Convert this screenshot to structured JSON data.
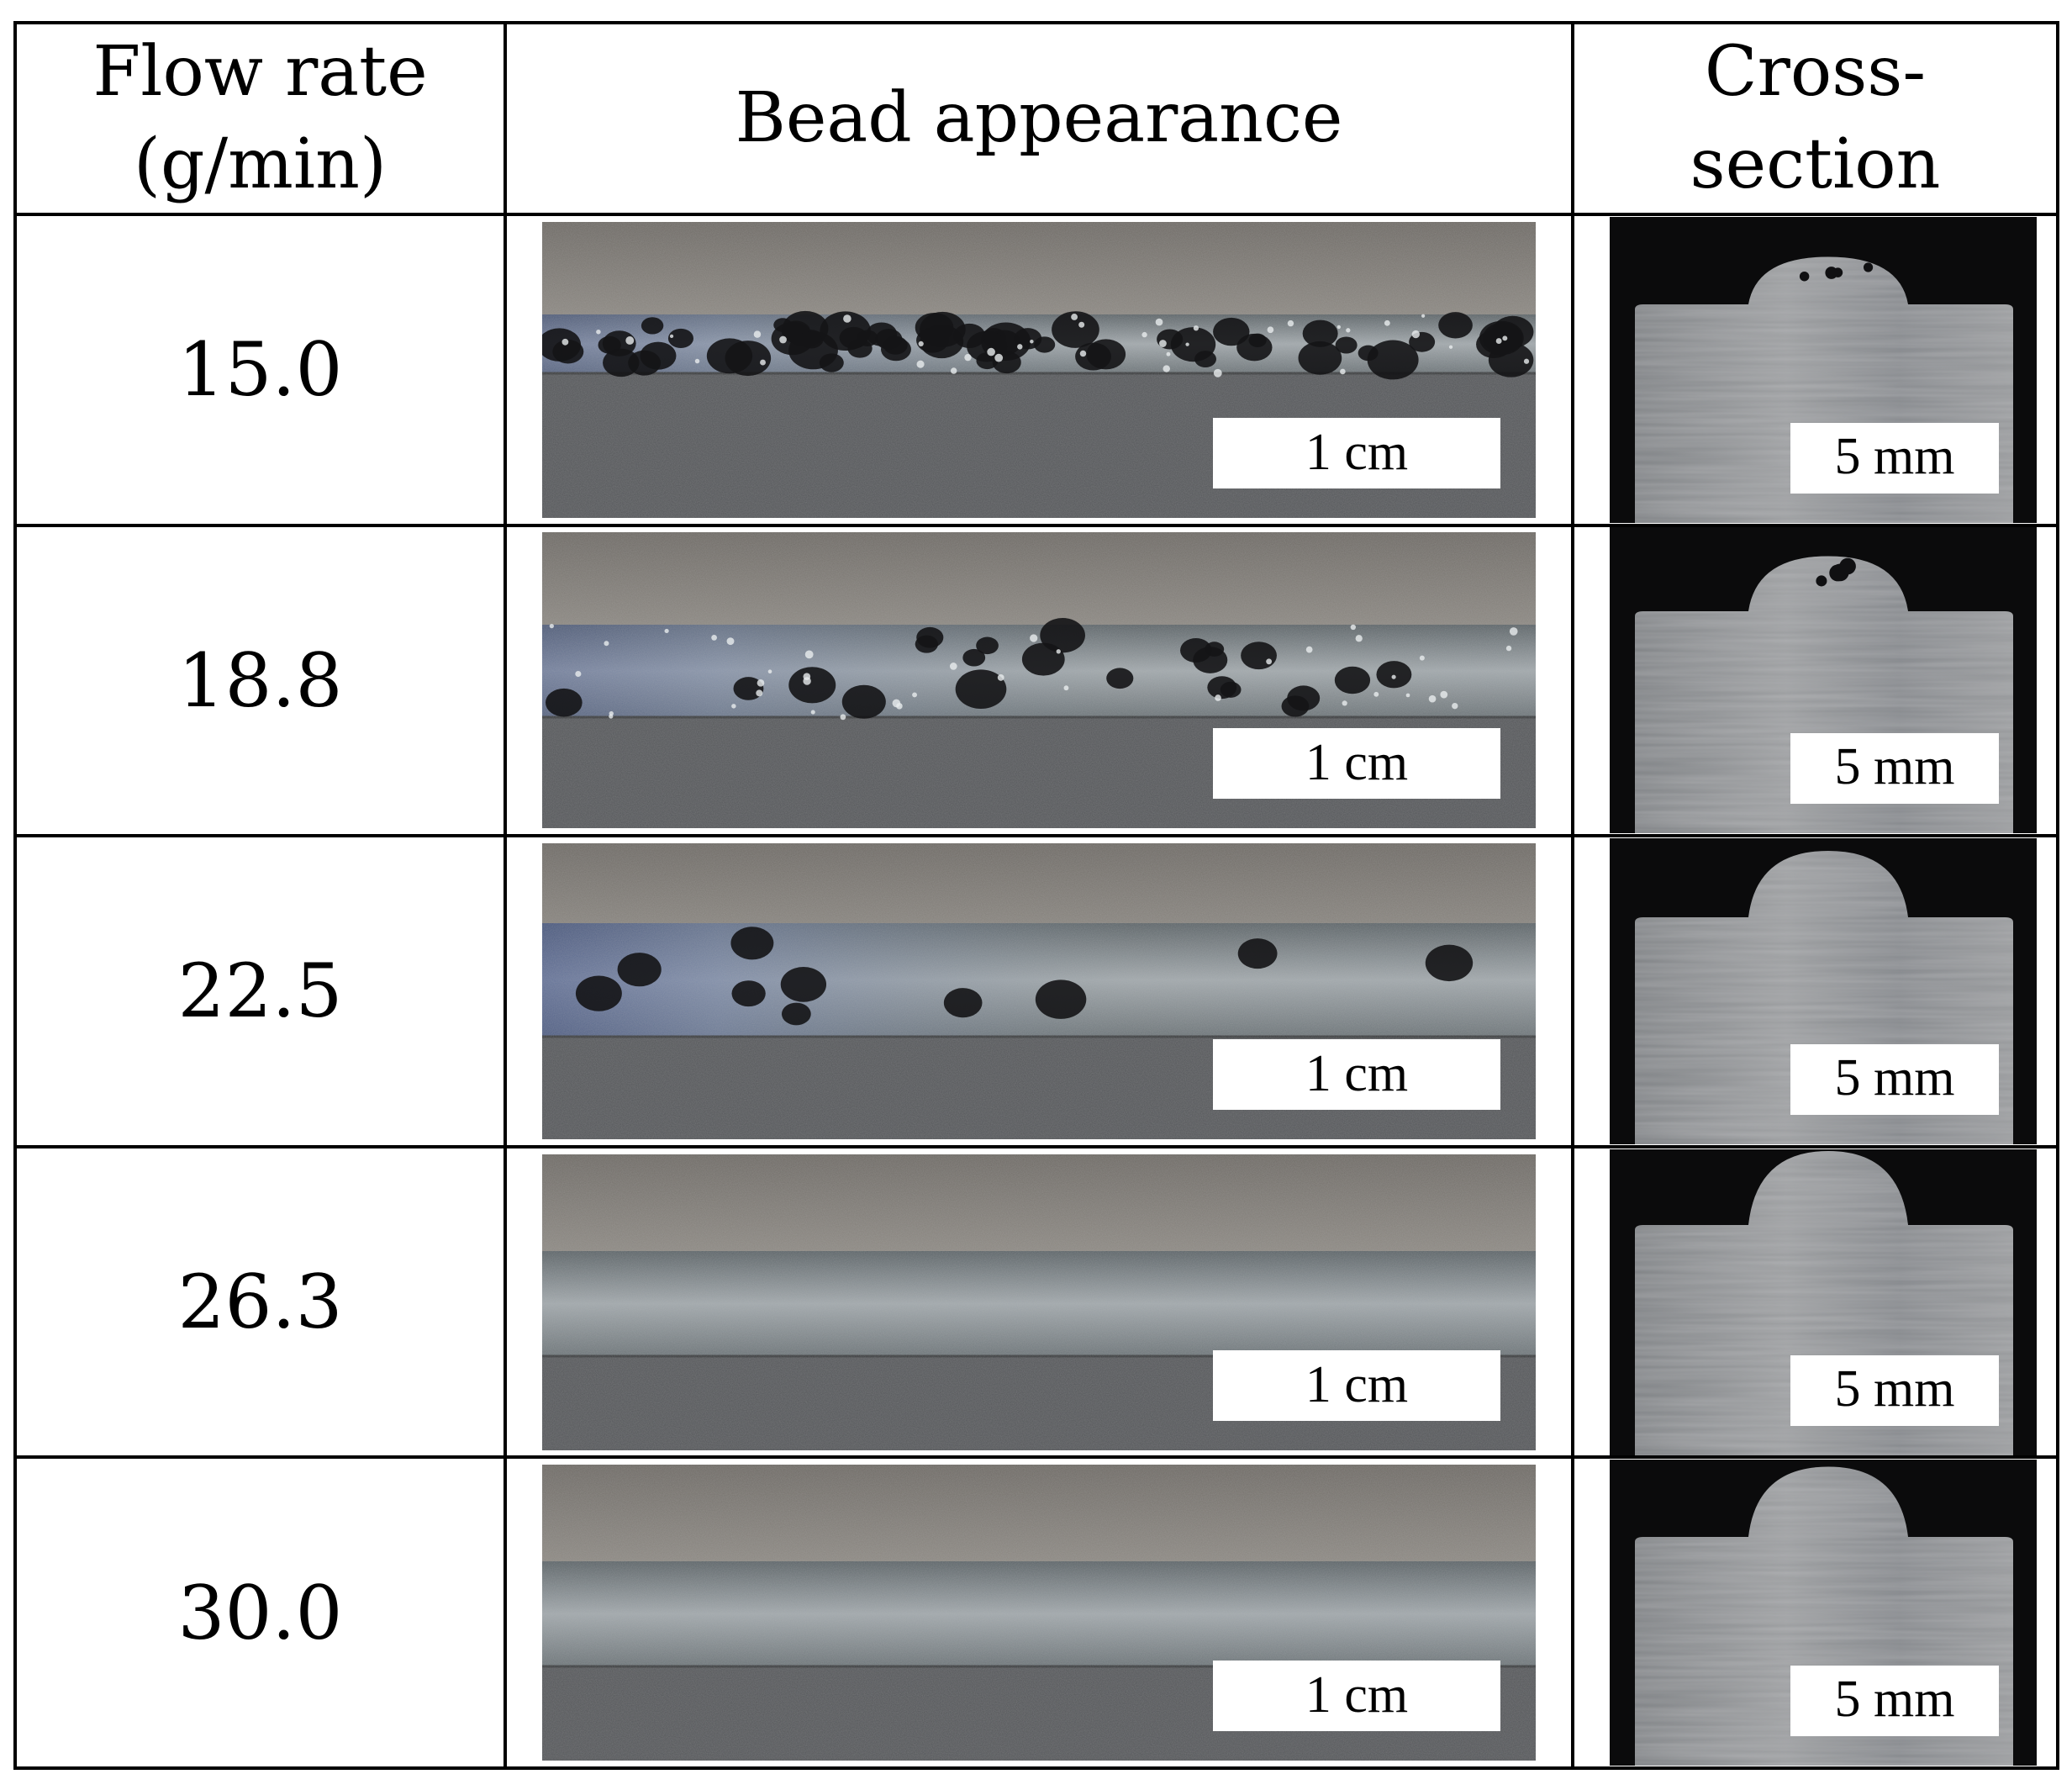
{
  "table": {
    "headers": {
      "flow_rate": "Flow rate (g/min)",
      "bead": "Bead appearance",
      "cross_section": "Cross-section"
    },
    "rows": [
      {
        "flow_rate": "15.0",
        "bead_scale": "1 cm",
        "xsec_scale": "5 mm",
        "bead_porosity": "high",
        "xsec_reinforcement": 0.25
      },
      {
        "flow_rate": "18.8",
        "bead_scale": "1 cm",
        "xsec_scale": "5 mm",
        "bead_porosity": "medium",
        "xsec_reinforcement": 0.35
      },
      {
        "flow_rate": "22.5",
        "bead_scale": "1 cm",
        "xsec_scale": "5 mm",
        "bead_porosity": "low",
        "xsec_reinforcement": 0.5
      },
      {
        "flow_rate": "26.3",
        "bead_scale": "1 cm",
        "xsec_scale": "5 mm",
        "bead_porosity": "none",
        "xsec_reinforcement": 0.6
      },
      {
        "flow_rate": "30.0",
        "bead_scale": "1 cm",
        "xsec_scale": "5 mm",
        "bead_porosity": "none",
        "xsec_reinforcement": 0.55
      }
    ]
  },
  "colors": {
    "plate": "#55575a",
    "plate_upper": "#7b7772",
    "bead_metal": "#8a9296",
    "oxide_blue": "#3c4f8c",
    "pore": "#141416",
    "background_black": "#0b0b0c",
    "section_metal": "#8c8e90"
  }
}
